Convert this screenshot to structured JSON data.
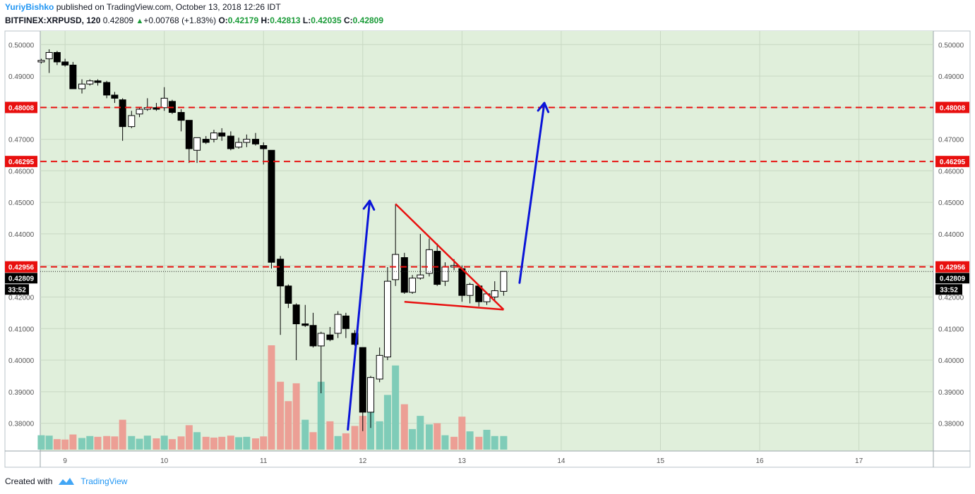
{
  "header": {
    "author": "YuriyBishko",
    "published_text": "published on TradingView.com, October 13, 2018 12:26 IDT",
    "symbol": "BITFINEX:XRPUSD, 120",
    "last_price": "0.42809",
    "change_arrow": "▲",
    "change": "+0.00768 (+1.83%)",
    "o_label": "O:",
    "o_value": "0.42179",
    "h_label": "H:",
    "h_value": "0.42813",
    "l_label": "L:",
    "l_value": "0.42035",
    "c_label": "C:",
    "c_value": "0.42809"
  },
  "footer": {
    "created_with": "Created with",
    "brand": "TradingView"
  },
  "colors": {
    "plot_bg": "#e0efdb",
    "grid": "#c8d8c3",
    "up_candle": "#ffffff",
    "down_candle": "#000000",
    "volume_up": "#7fccb8",
    "volume_down": "#ec9f95",
    "level_line": "#e8100f",
    "triangle": "#e8100f",
    "arrow": "#0a14d8",
    "price_badge": "#000000",
    "level_badge": "#e8100f"
  },
  "chart_data": {
    "type": "candlestick",
    "y_axis_ticks": [
      "0.50000",
      "0.49000",
      "0.48000",
      "0.47000",
      "0.46000",
      "0.45000",
      "0.44000",
      "0.43000",
      "0.42000",
      "0.41000",
      "0.40000",
      "0.39000",
      "0.38000"
    ],
    "x_axis_ticks": [
      "9",
      "10",
      "11",
      "12",
      "13",
      "14",
      "15",
      "16",
      "17"
    ],
    "ylim": [
      0.3712,
      0.5043
    ],
    "xlim": [
      8.75,
      17.75
    ],
    "grid": true,
    "levels": [
      {
        "label": "0.48008",
        "value": 0.48008
      },
      {
        "label": "0.46295",
        "value": 0.46295
      },
      {
        "label": "0.42956",
        "value": 0.42956
      }
    ],
    "current_price": {
      "label": "0.42809",
      "value": 0.42809
    },
    "countdown": "33:52",
    "candles": [
      [
        8.76,
        0.4945,
        0.4955,
        0.494,
        0.495
      ],
      [
        8.84,
        0.4955,
        0.4985,
        0.491,
        0.4975
      ],
      [
        8.92,
        0.4975,
        0.498,
        0.4935,
        0.4945
      ],
      [
        9.0,
        0.4945,
        0.4955,
        0.493,
        0.4935
      ],
      [
        9.08,
        0.4935,
        0.4945,
        0.486,
        0.486
      ],
      [
        9.17,
        0.486,
        0.489,
        0.4845,
        0.4875
      ],
      [
        9.25,
        0.4875,
        0.489,
        0.487,
        0.4885
      ],
      [
        9.33,
        0.4885,
        0.489,
        0.487,
        0.488
      ],
      [
        9.42,
        0.488,
        0.4885,
        0.483,
        0.484
      ],
      [
        9.5,
        0.484,
        0.485,
        0.4815,
        0.483
      ],
      [
        9.58,
        0.4825,
        0.483,
        0.4695,
        0.474
      ],
      [
        9.67,
        0.474,
        0.479,
        0.4735,
        0.4775
      ],
      [
        9.75,
        0.478,
        0.48,
        0.477,
        0.4795
      ],
      [
        9.83,
        0.4795,
        0.483,
        0.479,
        0.48
      ],
      [
        9.92,
        0.48,
        0.4815,
        0.479,
        0.4795
      ],
      [
        10.0,
        0.48,
        0.4865,
        0.479,
        0.483
      ],
      [
        10.08,
        0.482,
        0.4825,
        0.478,
        0.4785
      ],
      [
        10.17,
        0.4785,
        0.4795,
        0.4725,
        0.476
      ],
      [
        10.25,
        0.476,
        0.476,
        0.4625,
        0.467
      ],
      [
        10.33,
        0.4665,
        0.4705,
        0.4625,
        0.4705
      ],
      [
        10.42,
        0.47,
        0.471,
        0.4685,
        0.469
      ],
      [
        10.5,
        0.47,
        0.473,
        0.469,
        0.472
      ],
      [
        10.58,
        0.472,
        0.4735,
        0.4695,
        0.471
      ],
      [
        10.67,
        0.471,
        0.4725,
        0.4665,
        0.467
      ],
      [
        10.75,
        0.4675,
        0.4705,
        0.467,
        0.469
      ],
      [
        10.83,
        0.469,
        0.4715,
        0.4675,
        0.47
      ],
      [
        10.92,
        0.47,
        0.472,
        0.468,
        0.4685
      ],
      [
        11.0,
        0.468,
        0.469,
        0.462,
        0.467
      ],
      [
        11.08,
        0.4665,
        0.4665,
        0.429,
        0.431
      ],
      [
        11.17,
        0.432,
        0.433,
        0.408,
        0.4235
      ],
      [
        11.25,
        0.4235,
        0.424,
        0.4165,
        0.418
      ],
      [
        11.33,
        0.4175,
        0.418,
        0.4,
        0.4115
      ],
      [
        11.42,
        0.4115,
        0.4175,
        0.4105,
        0.411
      ],
      [
        11.5,
        0.411,
        0.415,
        0.404,
        0.4045
      ],
      [
        11.58,
        0.4045,
        0.409,
        0.3895,
        0.4085
      ],
      [
        11.67,
        0.408,
        0.4105,
        0.406,
        0.4065
      ],
      [
        11.75,
        0.4085,
        0.4155,
        0.407,
        0.4145
      ],
      [
        11.83,
        0.414,
        0.415,
        0.407,
        0.41
      ],
      [
        11.92,
        0.4085,
        0.4095,
        0.4045,
        0.405
      ],
      [
        12.0,
        0.404,
        0.404,
        0.3775,
        0.3835
      ],
      [
        12.08,
        0.3835,
        0.395,
        0.3785,
        0.3945
      ],
      [
        12.17,
        0.394,
        0.404,
        0.393,
        0.4015
      ],
      [
        12.25,
        0.401,
        0.4295,
        0.4,
        0.425
      ],
      [
        12.33,
        0.4255,
        0.4495,
        0.4235,
        0.4335
      ],
      [
        12.42,
        0.4325,
        0.434,
        0.421,
        0.4215
      ],
      [
        12.5,
        0.4215,
        0.427,
        0.421,
        0.426
      ],
      [
        12.58,
        0.426,
        0.44,
        0.4255,
        0.427
      ],
      [
        12.67,
        0.4275,
        0.4385,
        0.4265,
        0.435
      ],
      [
        12.75,
        0.4345,
        0.437,
        0.4235,
        0.424
      ],
      [
        12.83,
        0.425,
        0.431,
        0.4235,
        0.4295
      ],
      [
        12.92,
        0.4295,
        0.432,
        0.4285,
        0.43
      ],
      [
        13.0,
        0.429,
        0.43,
        0.4185,
        0.4205
      ],
      [
        13.08,
        0.4205,
        0.4245,
        0.418,
        0.424
      ],
      [
        13.17,
        0.4235,
        0.424,
        0.417,
        0.4185
      ],
      [
        13.25,
        0.4185,
        0.4215,
        0.4175,
        0.421
      ],
      [
        13.33,
        0.42,
        0.425,
        0.419,
        0.422
      ],
      [
        13.42,
        0.4218,
        0.4281,
        0.4204,
        0.4281
      ]
    ],
    "volume": [
      [
        8.76,
        0.0185,
        "up"
      ],
      [
        8.84,
        0.018,
        "up"
      ],
      [
        8.92,
        0.0135,
        "down"
      ],
      [
        9.0,
        0.013,
        "down"
      ],
      [
        9.08,
        0.0195,
        "down"
      ],
      [
        9.17,
        0.015,
        "up"
      ],
      [
        9.25,
        0.0175,
        "up"
      ],
      [
        9.33,
        0.0165,
        "down"
      ],
      [
        9.42,
        0.0175,
        "down"
      ],
      [
        9.5,
        0.017,
        "down"
      ],
      [
        9.58,
        0.0385,
        "down"
      ],
      [
        9.67,
        0.0175,
        "up"
      ],
      [
        9.75,
        0.014,
        "up"
      ],
      [
        9.83,
        0.018,
        "up"
      ],
      [
        9.92,
        0.0145,
        "down"
      ],
      [
        10.0,
        0.018,
        "up"
      ],
      [
        10.08,
        0.0135,
        "down"
      ],
      [
        10.17,
        0.017,
        "down"
      ],
      [
        10.25,
        0.0315,
        "down"
      ],
      [
        10.33,
        0.0225,
        "up"
      ],
      [
        10.42,
        0.0165,
        "down"
      ],
      [
        10.5,
        0.0155,
        "down"
      ],
      [
        10.58,
        0.0165,
        "down"
      ],
      [
        10.67,
        0.018,
        "down"
      ],
      [
        10.75,
        0.016,
        "up"
      ],
      [
        10.83,
        0.0165,
        "up"
      ],
      [
        10.92,
        0.0145,
        "down"
      ],
      [
        11.0,
        0.017,
        "down"
      ],
      [
        11.08,
        0.1345,
        "down"
      ],
      [
        11.17,
        0.0875,
        "down"
      ],
      [
        11.25,
        0.0625,
        "down"
      ],
      [
        11.33,
        0.0855,
        "down"
      ],
      [
        11.42,
        0.0385,
        "up"
      ],
      [
        11.5,
        0.0225,
        "down"
      ],
      [
        11.58,
        0.0875,
        "up"
      ],
      [
        11.67,
        0.0365,
        "down"
      ],
      [
        11.75,
        0.0175,
        "up"
      ],
      [
        11.83,
        0.021,
        "down"
      ],
      [
        11.92,
        0.0305,
        "down"
      ],
      [
        12.0,
        0.0435,
        "down"
      ],
      [
        12.08,
        0.0585,
        "up"
      ],
      [
        12.17,
        0.0365,
        "up"
      ],
      [
        12.25,
        0.0705,
        "up"
      ],
      [
        12.33,
        0.1085,
        "up"
      ],
      [
        12.42,
        0.0585,
        "down"
      ],
      [
        12.5,
        0.0265,
        "up"
      ],
      [
        12.58,
        0.0435,
        "up"
      ],
      [
        12.67,
        0.0325,
        "up"
      ],
      [
        12.75,
        0.034,
        "down"
      ],
      [
        12.83,
        0.0185,
        "up"
      ],
      [
        12.92,
        0.0165,
        "down"
      ],
      [
        13.0,
        0.0425,
        "down"
      ],
      [
        13.08,
        0.0235,
        "up"
      ],
      [
        13.17,
        0.0165,
        "down"
      ],
      [
        13.25,
        0.0255,
        "up"
      ],
      [
        13.33,
        0.0175,
        "up"
      ],
      [
        13.42,
        0.0175,
        "up"
      ]
    ],
    "triangle": {
      "upper": [
        [
          12.33,
          0.4495
        ],
        [
          13.42,
          0.416
        ]
      ],
      "lower": [
        [
          12.42,
          0.4185
        ],
        [
          13.42,
          0.416
        ]
      ]
    },
    "arrows": [
      {
        "from": [
          11.85,
          0.378
        ],
        "to": [
          12.07,
          0.4505
        ]
      },
      {
        "from": [
          13.58,
          0.4245
        ],
        "to": [
          13.83,
          0.4815
        ]
      }
    ]
  }
}
